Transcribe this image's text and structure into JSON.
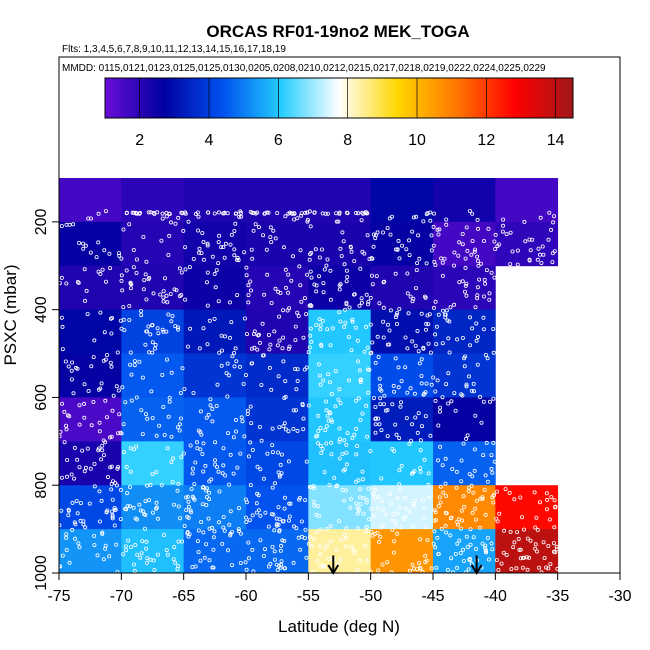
{
  "chart_data": {
    "type": "heatmap",
    "title": "ORCAS RF01-19no2 MEK_TOGA",
    "subtitle_flights": "Flts: 1,3,4,5,6,7,8,9,10,11,12,13,14,15,16,17,18,19",
    "subtitle_dates": "MMDD: 0115,0121,0123,0125,0125,0130,0205,0208,0210,0212,0215,0217,0218,0219,0222,0224,0225,0229",
    "xlabel": "Latitude (deg N)",
    "ylabel": "PSXC (mbar)",
    "xlim": [
      -75,
      -30
    ],
    "ylim": [
      1000,
      100
    ],
    "x_ticks": [
      -75,
      -70,
      -65,
      -60,
      -55,
      -50,
      -45,
      -40,
      -35,
      -30
    ],
    "y_ticks": [
      200,
      400,
      600,
      800,
      1000
    ],
    "colorbar": {
      "range": [
        1,
        14.5
      ],
      "ticks": [
        2,
        4,
        6,
        8,
        10,
        12,
        14
      ],
      "stops": [
        "#6a0dd8",
        "#0000a0",
        "#0050ee",
        "#22ccff",
        "#ffffff",
        "#ffd700",
        "#ff7700",
        "#ff0000",
        "#a01818"
      ]
    },
    "lat_bins": [
      -75,
      -70,
      -65,
      -60,
      -55,
      -50,
      -45,
      -40,
      -35
    ],
    "pres_bins": [
      100,
      200,
      300,
      400,
      500,
      600,
      700,
      800,
      900,
      1000
    ],
    "grid_values": [
      [
        1.6,
        2.0,
        2.2,
        2.2,
        2.2,
        2.8,
        2.4,
        1.6
      ],
      [
        2.6,
        2.1,
        2.4,
        2.3,
        2.3,
        2.6,
        1.6,
        1.9
      ],
      [
        2.2,
        2.2,
        2.5,
        2.1,
        2.5,
        2.2,
        2.0,
        null
      ],
      [
        2.8,
        4.1,
        3.2,
        2.2,
        6.0,
        3.0,
        3.5,
        null
      ],
      [
        2.6,
        4.5,
        3.8,
        3.6,
        6.2,
        4.3,
        3.8,
        null
      ],
      [
        1.5,
        4.6,
        4.5,
        3.8,
        6.0,
        3.3,
        2.6,
        null
      ],
      [
        2.3,
        6.2,
        4.5,
        4.2,
        5.9,
        6.0,
        4.6,
        null
      ],
      [
        4.2,
        5.2,
        5.0,
        4.4,
        6.8,
        7.4,
        10.8,
        12.7
      ],
      [
        5.3,
        5.9,
        4.7,
        4.7,
        8.4,
        10.6,
        5.5,
        14.0
      ]
    ],
    "markers": [
      {
        "type": "arrow",
        "x": -53,
        "y_from": 960,
        "y_to": 1000
      },
      {
        "type": "arrow",
        "x": -41.5,
        "y_from": 960,
        "y_to": 1000
      }
    ],
    "grid": false
  }
}
